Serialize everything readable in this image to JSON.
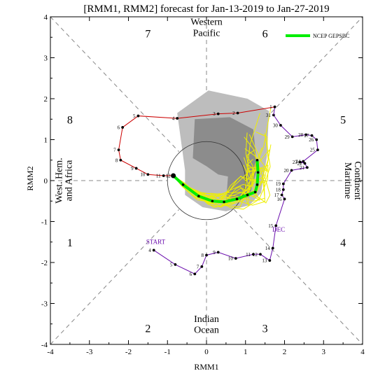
{
  "chart_data": {
    "type": "line",
    "title": "[RMM1, RMM2] forecast for Jan-13-2019 to Jan-27-2019",
    "xlabel": "RMM1",
    "ylabel": "RMM2",
    "xlim": [
      -4,
      4
    ],
    "ylim": [
      -4,
      4
    ],
    "xticks": [
      "-4",
      "-3",
      "-2",
      "-1",
      "0",
      "1",
      "2",
      "3",
      "4"
    ],
    "yticks": [
      "-4",
      "-3",
      "-2",
      "-1",
      "0",
      "1",
      "2",
      "3",
      "4"
    ],
    "legend": {
      "position": "top-right",
      "label": "NCEP GEPSBC",
      "color": "#00ee00"
    },
    "phase_numbers": [
      {
        "label": "1",
        "x": -3.5,
        "y": -1.5
      },
      {
        "label": "2",
        "x": -1.5,
        "y": -3.6
      },
      {
        "label": "3",
        "x": 1.5,
        "y": -3.6
      },
      {
        "label": "4",
        "x": 3.5,
        "y": -1.5
      },
      {
        "label": "5",
        "x": 3.5,
        "y": 1.5
      },
      {
        "label": "6",
        "x": 1.5,
        "y": 3.6
      },
      {
        "label": "7",
        "x": -1.5,
        "y": 3.6
      },
      {
        "label": "8",
        "x": -3.5,
        "y": 1.5
      }
    ],
    "region_labels": {
      "top": [
        "Western",
        "Pacific"
      ],
      "bottom": [
        "Indian",
        "Ocean"
      ],
      "left": [
        "West. Hem.",
        "and Africa"
      ],
      "right": [
        "Maritime",
        "Continent"
      ]
    },
    "annotations": [
      {
        "text": "START",
        "x": -1.3,
        "y": -1.55,
        "color": "#6a0dad"
      },
      {
        "text": "DEC",
        "x": 1.85,
        "y": -1.25,
        "color": "#6a0dad"
      }
    ],
    "observed_dec": {
      "color": "#6a0dad",
      "points": [
        {
          "label": "4",
          "x": -1.35,
          "y": -1.7
        },
        {
          "label": "5",
          "x": -0.8,
          "y": -2.05
        },
        {
          "label": "6",
          "x": -0.3,
          "y": -2.28
        },
        {
          "label": "7",
          "x": -0.12,
          "y": -2.1
        },
        {
          "label": "8",
          "x": 0.0,
          "y": -1.82
        },
        {
          "label": "9",
          "x": 0.3,
          "y": -1.75
        },
        {
          "label": "10",
          "x": 0.75,
          "y": -1.9
        },
        {
          "label": "11",
          "x": 1.2,
          "y": -1.8
        },
        {
          "label": "12",
          "x": 1.38,
          "y": -1.8
        },
        {
          "label": "13",
          "x": 1.62,
          "y": -1.95
        },
        {
          "label": "14",
          "x": 1.7,
          "y": -1.65
        },
        {
          "label": "15",
          "x": 1.78,
          "y": -1.1
        },
        {
          "label": "16",
          "x": 2.0,
          "y": -0.45
        },
        {
          "label": "17",
          "x": 1.93,
          "y": -0.35
        },
        {
          "label": "18",
          "x": 1.97,
          "y": -0.22
        },
        {
          "label": "19",
          "x": 1.97,
          "y": -0.08
        },
        {
          "label": "20",
          "x": 2.18,
          "y": 0.25
        },
        {
          "label": "21",
          "x": 2.58,
          "y": 0.32
        },
        {
          "label": "22",
          "x": 2.52,
          "y": 0.42
        },
        {
          "label": "23",
          "x": 2.4,
          "y": 0.45
        },
        {
          "label": "24",
          "x": 2.48,
          "y": 0.47
        },
        {
          "label": "25",
          "x": 2.85,
          "y": 0.75
        },
        {
          "label": "26",
          "x": 2.82,
          "y": 1.0
        },
        {
          "label": "27",
          "x": 2.7,
          "y": 1.1
        },
        {
          "label": "28",
          "x": 2.55,
          "y": 1.12
        },
        {
          "label": "29",
          "x": 2.2,
          "y": 1.07
        },
        {
          "label": "30",
          "x": 1.9,
          "y": 1.35
        },
        {
          "label": "31",
          "x": 1.72,
          "y": 1.6
        }
      ]
    },
    "observed_jan": {
      "color": "#cc0000",
      "points": [
        {
          "label": "1",
          "x": 1.75,
          "y": 1.8
        },
        {
          "label": "2",
          "x": 0.8,
          "y": 1.65
        },
        {
          "label": "3",
          "x": 0.3,
          "y": 1.63
        },
        {
          "label": "4",
          "x": -0.75,
          "y": 1.52
        },
        {
          "label": "5",
          "x": -1.75,
          "y": 1.58
        },
        {
          "label": "6",
          "x": -2.15,
          "y": 1.3
        },
        {
          "label": "7",
          "x": -2.25,
          "y": 0.75
        },
        {
          "label": "8",
          "x": -2.2,
          "y": 0.5
        },
        {
          "label": "9",
          "x": -1.8,
          "y": 0.3
        },
        {
          "label": "10",
          "x": -1.5,
          "y": 0.15
        },
        {
          "label": "11",
          "x": -1.1,
          "y": 0.12
        },
        {
          "label": "12",
          "x": -0.85,
          "y": 0.12
        }
      ]
    },
    "forecast_mean": {
      "name": "NCEP GEPSBC",
      "color": "#00ee00",
      "points": [
        {
          "x": -0.85,
          "y": 0.12
        },
        {
          "x": -0.6,
          "y": -0.1
        },
        {
          "x": -0.2,
          "y": -0.38
        },
        {
          "x": 0.15,
          "y": -0.5
        },
        {
          "x": 0.45,
          "y": -0.52
        },
        {
          "x": 0.78,
          "y": -0.45
        },
        {
          "x": 1.05,
          "y": -0.35
        },
        {
          "x": 1.25,
          "y": -0.28
        },
        {
          "x": 1.3,
          "y": -0.1
        },
        {
          "x": 1.32,
          "y": 0.2
        },
        {
          "x": 1.3,
          "y": 0.5
        }
      ]
    }
  }
}
